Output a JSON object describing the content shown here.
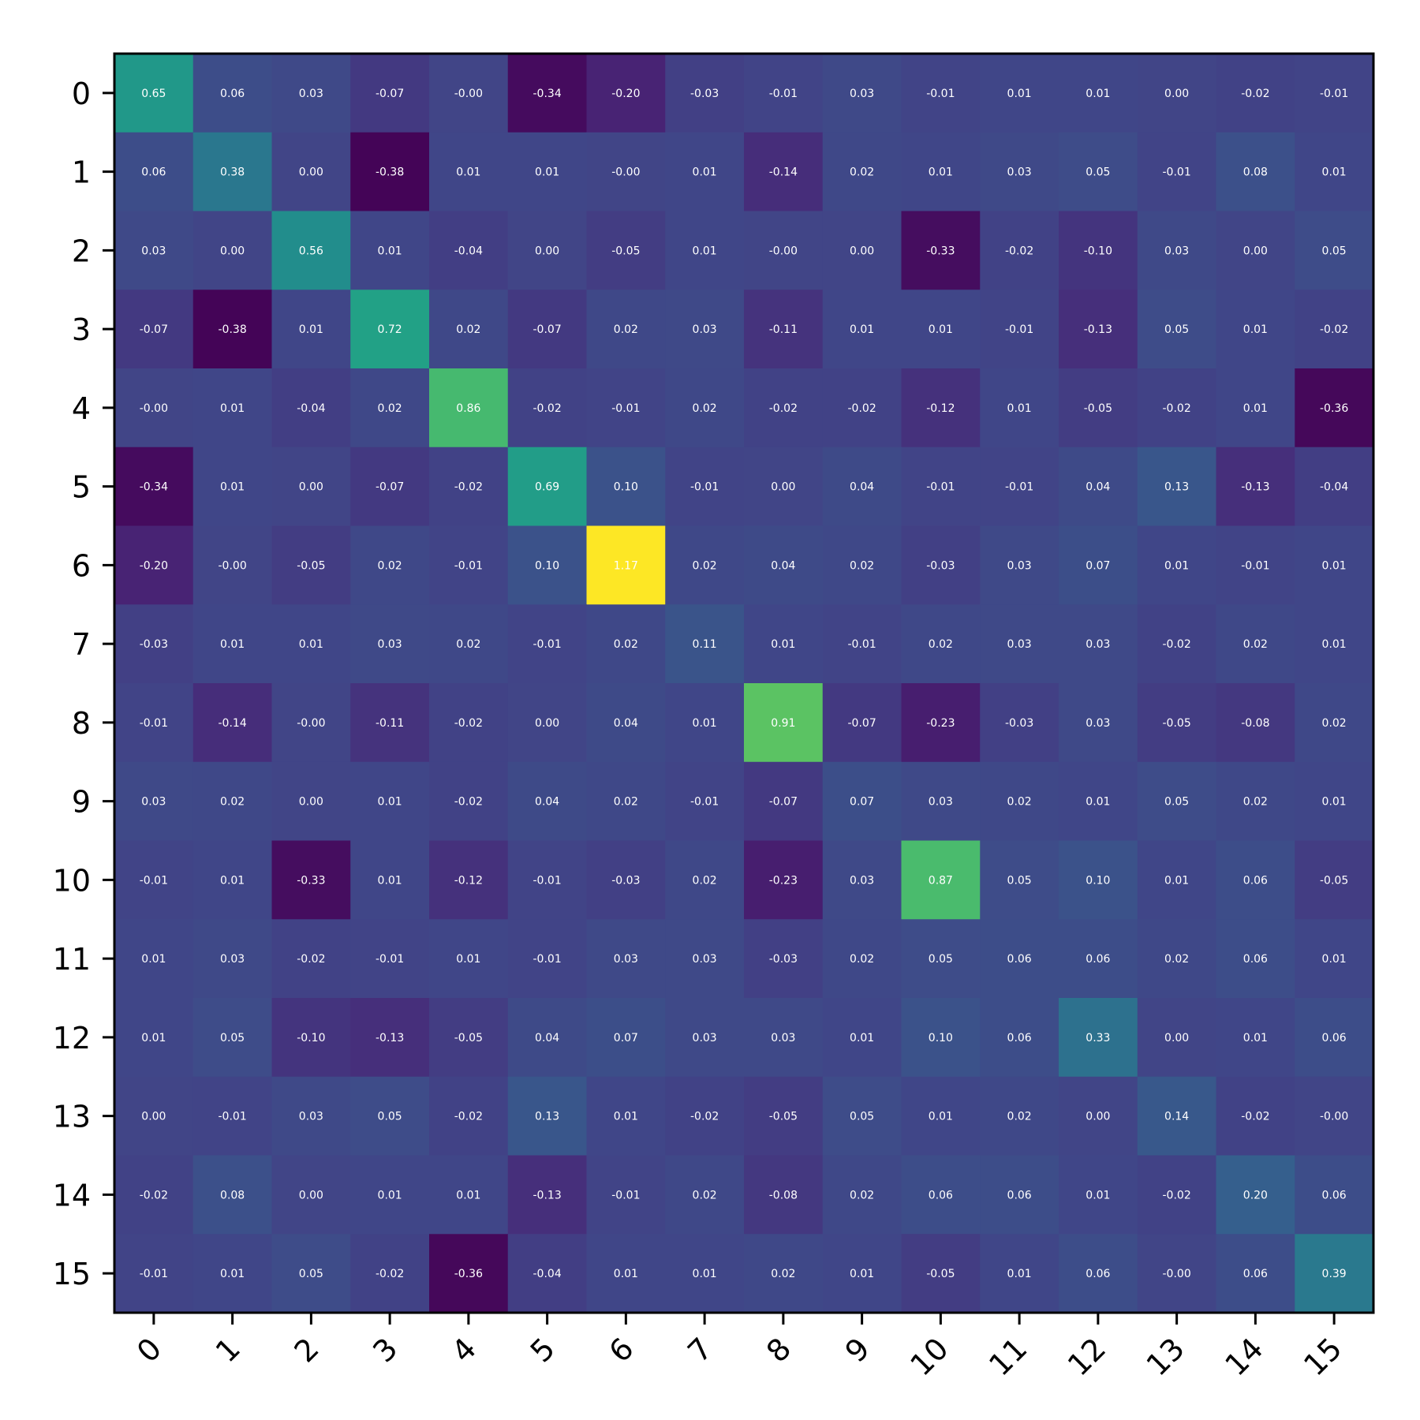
{
  "chart_data": {
    "type": "heatmap",
    "title": "",
    "xlabel": "",
    "ylabel": "",
    "colormap": "viridis",
    "color_range": [
      -0.4,
      1.17
    ],
    "x_categories": [
      "0",
      "1",
      "2",
      "3",
      "4",
      "5",
      "6",
      "7",
      "8",
      "9",
      "10",
      "11",
      "12",
      "13",
      "14",
      "15"
    ],
    "y_categories": [
      "0",
      "1",
      "2",
      "3",
      "4",
      "5",
      "6",
      "7",
      "8",
      "9",
      "10",
      "11",
      "12",
      "13",
      "14",
      "15"
    ],
    "values": [
      [
        0.65,
        0.06,
        0.03,
        -0.07,
        -0.0,
        -0.34,
        -0.2,
        -0.03,
        -0.01,
        0.03,
        -0.01,
        0.01,
        0.01,
        0.0,
        -0.02,
        -0.01
      ],
      [
        0.06,
        0.38,
        0.0,
        -0.38,
        0.01,
        0.01,
        -0.0,
        0.01,
        -0.14,
        0.02,
        0.01,
        0.03,
        0.05,
        -0.01,
        0.08,
        0.01
      ],
      [
        0.03,
        0.0,
        0.56,
        0.01,
        -0.04,
        0.0,
        -0.05,
        0.01,
        -0.0,
        0.0,
        -0.33,
        -0.02,
        -0.1,
        0.03,
        0.0,
        0.05
      ],
      [
        -0.07,
        -0.38,
        0.01,
        0.72,
        0.02,
        -0.07,
        0.02,
        0.03,
        -0.11,
        0.01,
        0.01,
        -0.01,
        -0.13,
        0.05,
        0.01,
        -0.02
      ],
      [
        -0.0,
        0.01,
        -0.04,
        0.02,
        0.86,
        -0.02,
        -0.01,
        0.02,
        -0.02,
        -0.02,
        -0.12,
        0.01,
        -0.05,
        -0.02,
        0.01,
        -0.36
      ],
      [
        -0.34,
        0.01,
        0.0,
        -0.07,
        -0.02,
        0.69,
        0.1,
        -0.01,
        0.0,
        0.04,
        -0.01,
        -0.01,
        0.04,
        0.13,
        -0.13,
        -0.04
      ],
      [
        -0.2,
        -0.0,
        -0.05,
        0.02,
        -0.01,
        0.1,
        1.17,
        0.02,
        0.04,
        0.02,
        -0.03,
        0.03,
        0.07,
        0.01,
        -0.01,
        0.01
      ],
      [
        -0.03,
        0.01,
        0.01,
        0.03,
        0.02,
        -0.01,
        0.02,
        0.11,
        0.01,
        -0.01,
        0.02,
        0.03,
        0.03,
        -0.02,
        0.02,
        0.01
      ],
      [
        -0.01,
        -0.14,
        -0.0,
        -0.11,
        -0.02,
        0.0,
        0.04,
        0.01,
        0.91,
        -0.07,
        -0.23,
        -0.03,
        0.03,
        -0.05,
        -0.08,
        0.02
      ],
      [
        0.03,
        0.02,
        0.0,
        0.01,
        -0.02,
        0.04,
        0.02,
        -0.01,
        -0.07,
        0.07,
        0.03,
        0.02,
        0.01,
        0.05,
        0.02,
        0.01
      ],
      [
        -0.01,
        0.01,
        -0.33,
        0.01,
        -0.12,
        -0.01,
        -0.03,
        0.02,
        -0.23,
        0.03,
        0.87,
        0.05,
        0.1,
        0.01,
        0.06,
        -0.05
      ],
      [
        0.01,
        0.03,
        -0.02,
        -0.01,
        0.01,
        -0.01,
        0.03,
        0.03,
        -0.03,
        0.02,
        0.05,
        0.06,
        0.06,
        0.02,
        0.06,
        0.01
      ],
      [
        0.01,
        0.05,
        -0.1,
        -0.13,
        -0.05,
        0.04,
        0.07,
        0.03,
        0.03,
        0.01,
        0.1,
        0.06,
        0.33,
        0.0,
        0.01,
        0.06
      ],
      [
        0.0,
        -0.01,
        0.03,
        0.05,
        -0.02,
        0.13,
        0.01,
        -0.02,
        -0.05,
        0.05,
        0.01,
        0.02,
        0.0,
        0.14,
        -0.02,
        -0.0
      ],
      [
        -0.02,
        0.08,
        0.0,
        0.01,
        0.01,
        -0.13,
        -0.01,
        0.02,
        -0.08,
        0.02,
        0.06,
        0.06,
        0.01,
        -0.02,
        0.2,
        0.06
      ],
      [
        -0.01,
        0.01,
        0.05,
        -0.02,
        -0.36,
        -0.04,
        0.01,
        0.01,
        0.02,
        0.01,
        -0.05,
        0.01,
        0.06,
        -0.0,
        0.06,
        0.39
      ]
    ],
    "grid": false,
    "legend": "none"
  }
}
